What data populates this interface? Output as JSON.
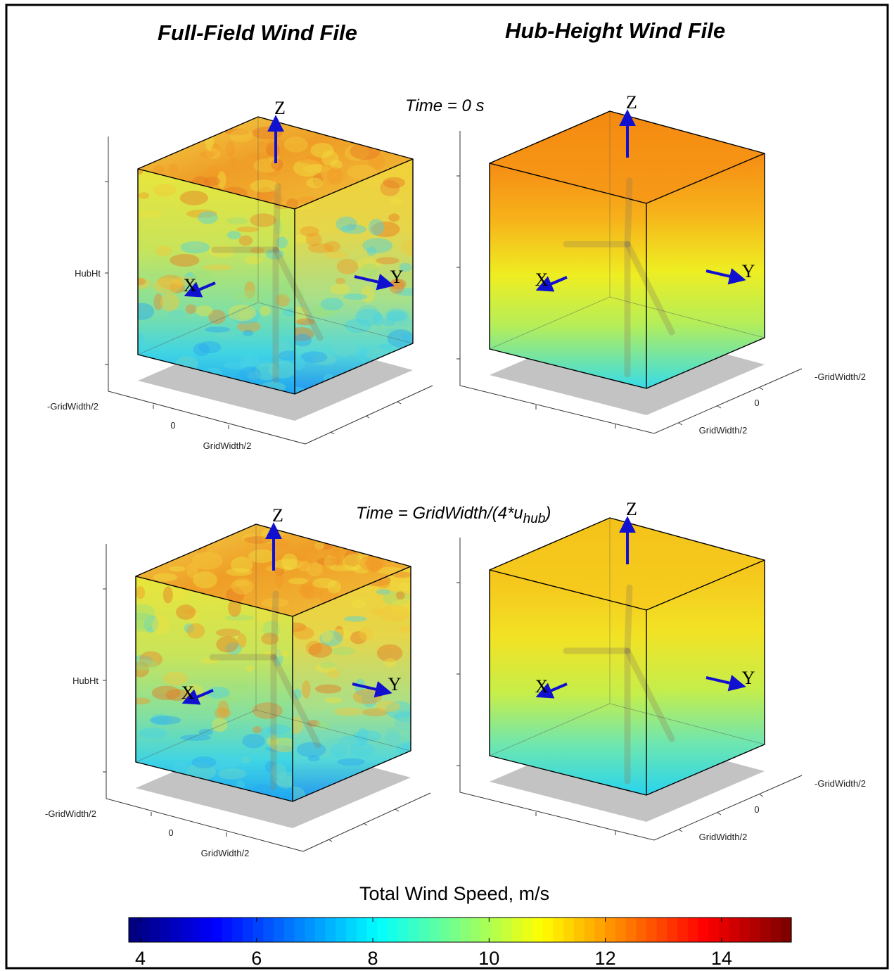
{
  "headers": {
    "full_field": "Full-Field Wind File",
    "hub_height": "Hub-Height Wind File"
  },
  "times": {
    "t0": "Time = 0 s",
    "t1_main": "Time = GridWidth/(4*u",
    "t1_sub": "hub",
    "t1_close": ")"
  },
  "axis_labels": {
    "hubht": "HubHt",
    "neg_gridwidth": "-GridWidth/2",
    "zero": "0",
    "pos_gridwidth": "GridWidth/2"
  },
  "vector_labels": {
    "x": "X",
    "y": "Y",
    "z": "Z"
  },
  "colorbar": {
    "title": "Total Wind Speed, m/s",
    "ticks": [
      "4",
      "6",
      "8",
      "10",
      "12",
      "14"
    ],
    "min": 3.8,
    "max": 15.2,
    "colormap": "jet"
  },
  "colors": {
    "vector": "#1010d0",
    "edge": "#000000",
    "shadow": "#c3c3c3",
    "border": "#000000"
  }
}
